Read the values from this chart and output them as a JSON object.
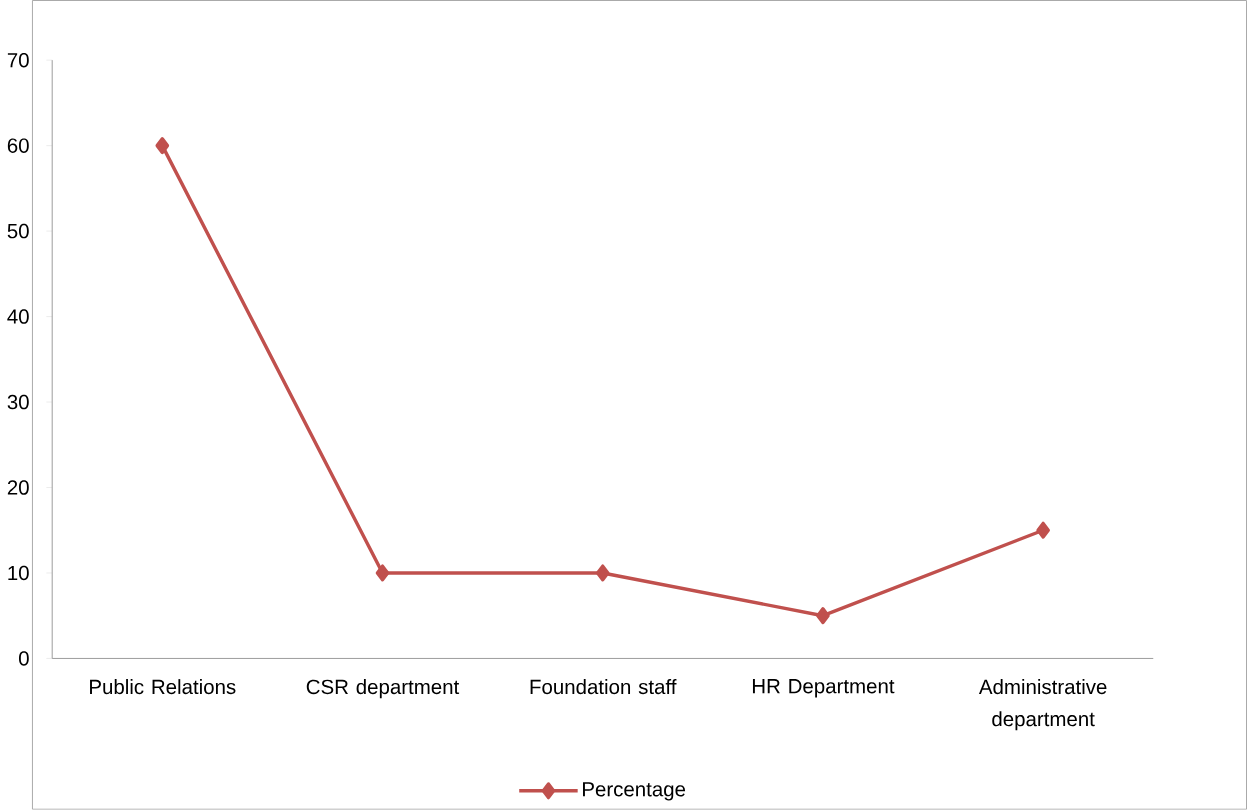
{
  "chart_data": {
    "type": "line",
    "categories": [
      "Public Relations",
      "CSR department",
      "Foundation staff",
      "HR Department",
      "Administrative department"
    ],
    "series": [
      {
        "name": "Percentage",
        "color": "#c0504d",
        "values": [
          60,
          10,
          10,
          5,
          15
        ]
      }
    ],
    "ylim": [
      0,
      70
    ],
    "yticks": [
      0,
      10,
      20,
      30,
      40,
      50,
      60,
      70
    ],
    "marker": "diamond",
    "line_style": "solid",
    "legend": "bottom",
    "grid": false
  }
}
